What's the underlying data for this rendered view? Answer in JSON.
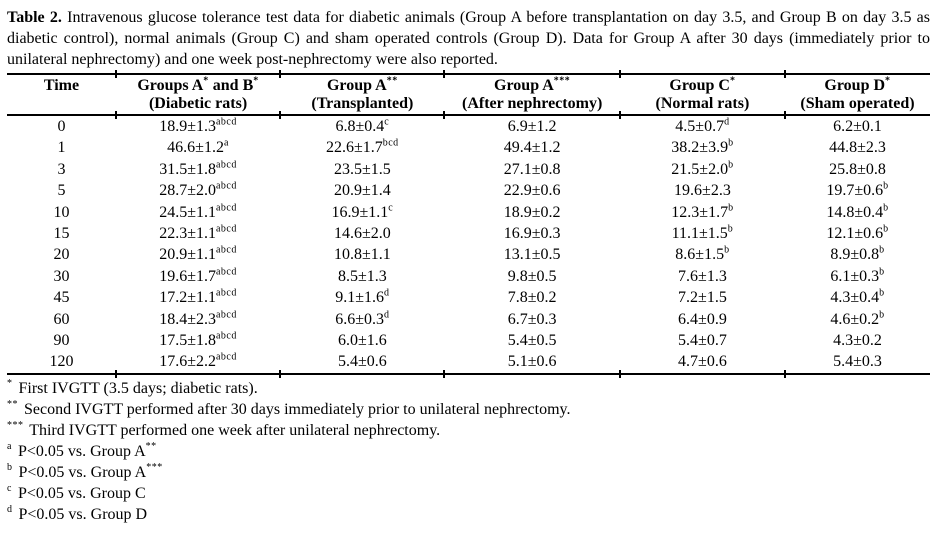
{
  "caption": {
    "label": "Table 2.",
    "text": "Intravenous glucose tolerance test data for diabetic animals (Group A before transplantation on day 3.5, and Group B on day 3.5 as diabetic control), normal animals (Group C) and sham operated controls (Group D). Data for Group A after 30 days (immediately prior to unilateral nephrectomy) and one week post-nephrectomy were also reported."
  },
  "table": {
    "columns": [
      {
        "title": "Time",
        "subtitle": ""
      },
      {
        "title": "Groups A|*| and B|*|",
        "subtitle": "(Diabetic rats)"
      },
      {
        "title": "Group A|**|",
        "subtitle": "(Transplanted)"
      },
      {
        "title": "Group A|***|",
        "subtitle": "(After nephrectomy)"
      },
      {
        "title": "Group C|*|",
        "subtitle": "(Normal rats)"
      },
      {
        "title": "Group D|*|",
        "subtitle": "(Sham operated)"
      }
    ],
    "rows": [
      [
        "0",
        "18.9±1.3|abcd|",
        "6.8±0.4|c|",
        "6.9±1.2",
        "4.5±0.7|d|",
        "6.2±0.1"
      ],
      [
        "1",
        "46.6±1.2|a|",
        "22.6±1.7|bcd|",
        "49.4±1.2",
        "38.2±3.9|b|",
        "44.8±2.3"
      ],
      [
        "3",
        "31.5±1.8|abcd|",
        "23.5±1.5",
        "27.1±0.8",
        "21.5±2.0|b|",
        "25.8±0.8"
      ],
      [
        "5",
        "28.7±2.0|abcd|",
        "20.9±1.4",
        "22.9±0.6",
        "19.6±2.3",
        "19.7±0.6|b|"
      ],
      [
        "10",
        "24.5±1.1|abcd|",
        "16.9±1.1|c|",
        "18.9±0.2",
        "12.3±1.7|b|",
        "14.8±0.4|b|"
      ],
      [
        "15",
        "22.3±1.1|abcd|",
        "14.6±2.0",
        "16.9±0.3",
        "11.1±1.5|b|",
        "12.1±0.6|b|"
      ],
      [
        "20",
        "20.9±1.1|abcd|",
        "10.8±1.1",
        "13.1±0.5",
        "8.6±1.5|b|",
        "8.9±0.8|b|"
      ],
      [
        "30",
        "19.6±1.7|abcd|",
        "8.5±1.3",
        "9.8±0.5",
        "7.6±1.3",
        "6.1±0.3|b|"
      ],
      [
        "45",
        "17.2±1.1|abcd|",
        "9.1±1.6|d|",
        "7.8±0.2",
        "7.2±1.5",
        "4.3±0.4|b|"
      ],
      [
        "60",
        "18.4±2.3|abcd|",
        "6.6±0.3|d|",
        "6.7±0.3",
        "6.4±0.9",
        "4.6±0.2|b|"
      ],
      [
        "90",
        "17.5±1.8|abcd|",
        "6.0±1.6",
        "5.4±0.5",
        "5.4±0.7",
        "4.3±0.2"
      ],
      [
        "120",
        "17.6±2.2|abcd|",
        "5.4±0.6",
        "5.1±0.6",
        "4.7±0.6",
        "5.4±0.3"
      ]
    ]
  },
  "footnotes": [
    "|*| First IVGTT (3.5 days; diabetic rats).",
    "|**| Second IVGTT performed after 30 days immediately prior to unilateral nephrectomy.",
    "|***| Third IVGTT performed one week after unilateral nephrectomy.",
    "|a| P<0.05 vs. Group A|**|",
    "|b| P<0.05 vs. Group A|***|",
    "|c| P<0.05 vs. Group C",
    "|d| P<0.05 vs. Group D"
  ]
}
